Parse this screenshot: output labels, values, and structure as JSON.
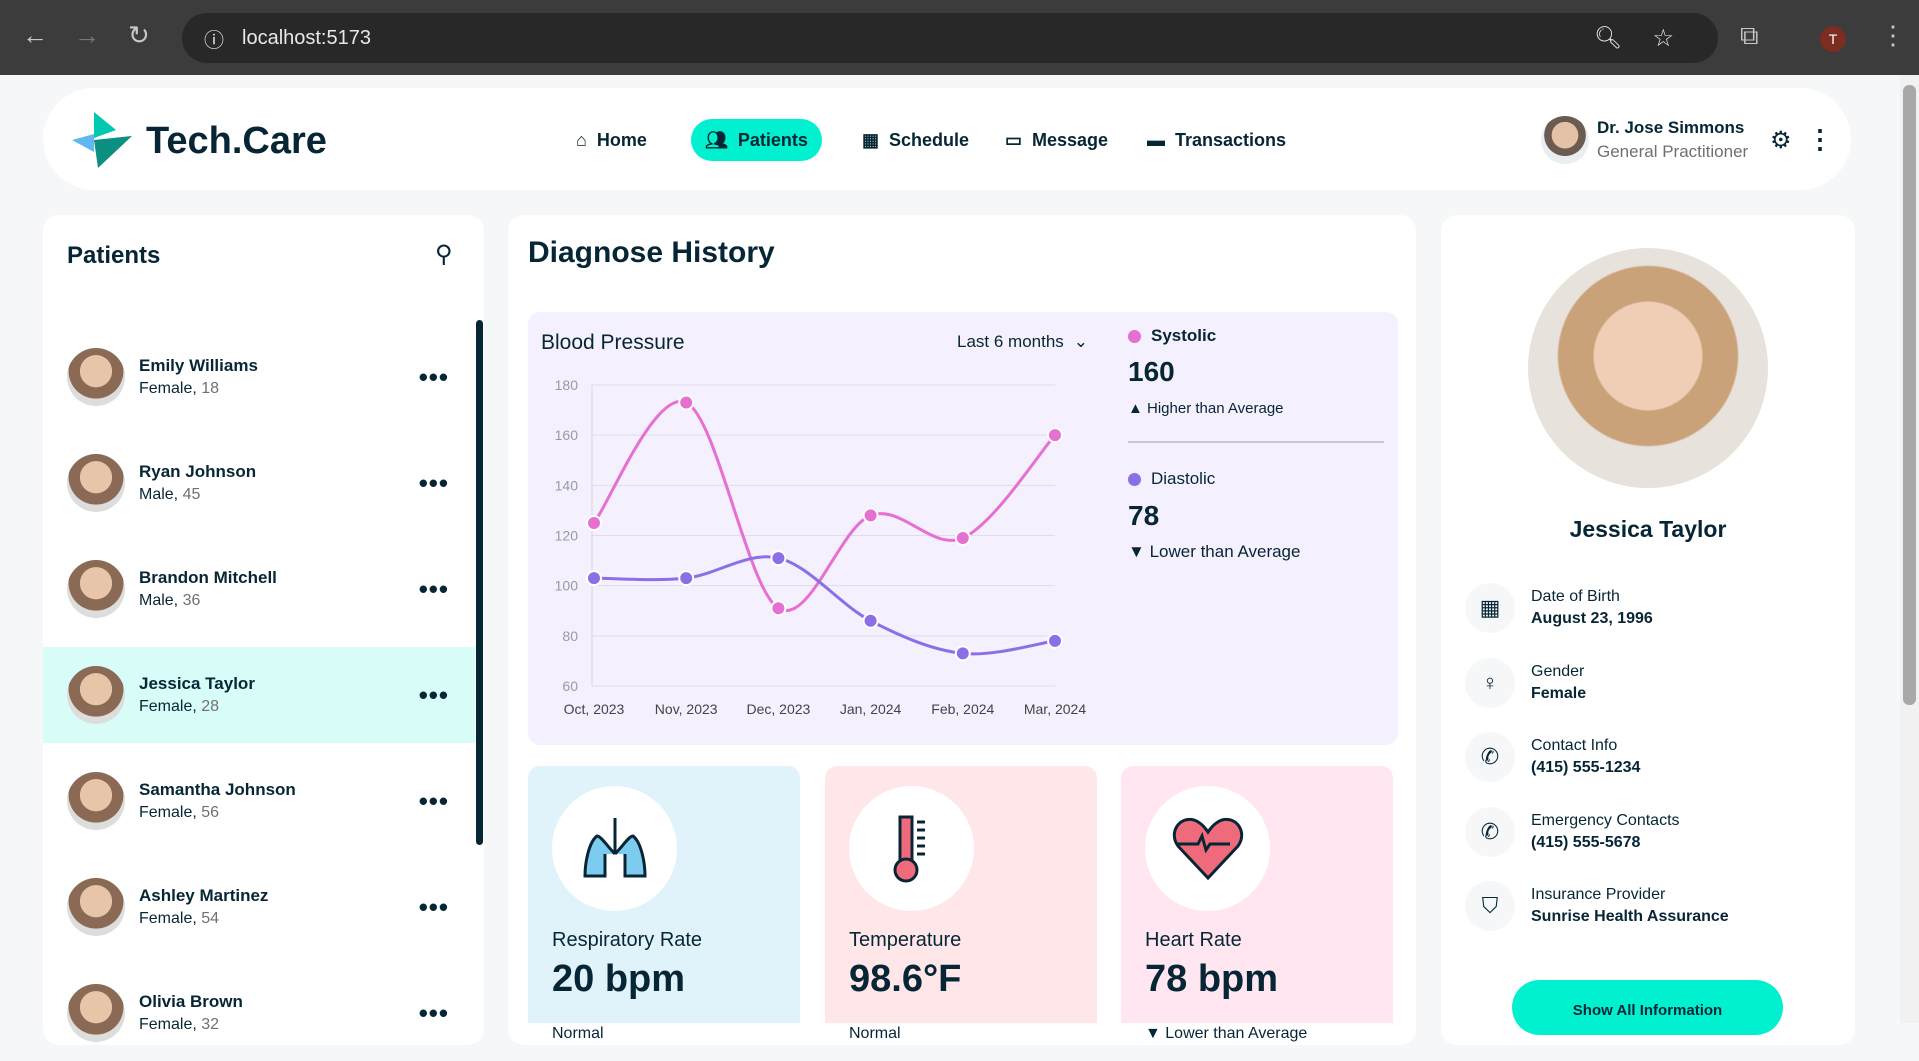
{
  "browser": {
    "url": "localhost:5173",
    "profile": "T"
  },
  "app": {
    "logo": "Tech.Care",
    "nav": [
      {
        "label": "Home",
        "icon": "home-icon"
      },
      {
        "label": "Patients",
        "icon": "users-icon",
        "active": true
      },
      {
        "label": "Schedule",
        "icon": "calendar-icon"
      },
      {
        "label": "Message",
        "icon": "chat-icon"
      },
      {
        "label": "Transactions",
        "icon": "credit-card-icon"
      }
    ],
    "user": {
      "name": "Dr. Jose Simmons",
      "role": "General Practitioner"
    }
  },
  "patients": {
    "title": "Patients",
    "list": [
      {
        "name": "Emily Williams",
        "gender": "Female,",
        "age": "18"
      },
      {
        "name": "Ryan Johnson",
        "gender": "Male,",
        "age": "45"
      },
      {
        "name": "Brandon Mitchell",
        "gender": "Male,",
        "age": "36"
      },
      {
        "name": "Jessica Taylor",
        "gender": "Female,",
        "age": "28",
        "selected": true
      },
      {
        "name": "Samantha Johnson",
        "gender": "Female,",
        "age": "56"
      },
      {
        "name": "Ashley Martinez",
        "gender": "Female,",
        "age": "54"
      },
      {
        "name": "Olivia Brown",
        "gender": "Female,",
        "age": "32"
      }
    ]
  },
  "diagnose": {
    "title": "Diagnose History",
    "bp_title": "Blood Pressure",
    "range": "Last 6 months",
    "systolic": {
      "label": "Systolic",
      "value": "160",
      "status": "Higher than Average"
    },
    "diastolic": {
      "label": "Diastolic",
      "value": "78",
      "status": "Lower than Average"
    },
    "vitals": [
      {
        "label": "Respiratory Rate",
        "value": "20 bpm",
        "status": "Normal",
        "bg": "#e0f3fa"
      },
      {
        "label": "Temperature",
        "value": "98.6°F",
        "status": "Normal",
        "bg": "#ffe6e9"
      },
      {
        "label": "Heart Rate",
        "value": "78 bpm",
        "status": "▼ Lower than Average",
        "bg": "#ffe6f1"
      }
    ]
  },
  "chart_data": {
    "type": "line",
    "categories": [
      "Oct, 2023",
      "Nov, 2023",
      "Dec, 2023",
      "Jan, 2024",
      "Feb, 2024",
      "Mar, 2024"
    ],
    "series": [
      {
        "name": "Systolic",
        "color": "#e66fd2",
        "values": [
          125,
          173,
          91,
          128,
          119,
          160
        ]
      },
      {
        "name": "Diastolic",
        "color": "#8c6fe6",
        "values": [
          103,
          103,
          111,
          86,
          73,
          78
        ]
      }
    ],
    "ylim": [
      60,
      180
    ],
    "yticks": [
      "180",
      "160",
      "140",
      "120",
      "100",
      "80",
      "60"
    ],
    "grid": true
  },
  "profile": {
    "name": "Jessica Taylor",
    "button": "Show All Information",
    "fields": [
      {
        "label": "Date of Birth",
        "value": "August 23, 1996",
        "icon": "calendar-icon"
      },
      {
        "label": "Gender",
        "value": "Female",
        "icon": "female-icon"
      },
      {
        "label": "Contact Info",
        "value": "(415) 555-1234",
        "icon": "phone-icon"
      },
      {
        "label": "Emergency Contacts",
        "value": "(415) 555-5678",
        "icon": "phone-icon"
      },
      {
        "label": "Insurance Provider",
        "value": "Sunrise Health Assurance",
        "icon": "shield-icon"
      }
    ]
  }
}
